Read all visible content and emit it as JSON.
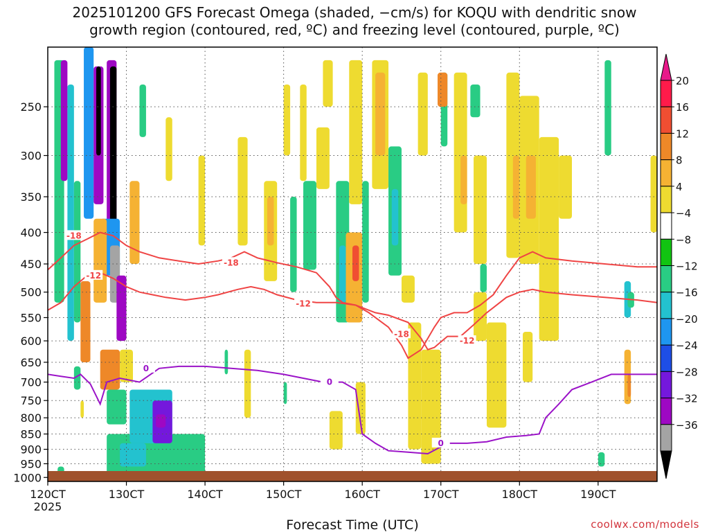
{
  "title_line1": "2025101200 GFS Forecast Omega (shaded, −cm/s) for KOQU with dendritic snow",
  "title_line2": "growth region (contoured, red, ºC) and freezing level (contoured, purple, ºC)",
  "credit": "coolwx.com/models",
  "chart_data": {
    "type": "heatmap",
    "xlabel": "Forecast Time (UTC)",
    "x_ticks": [
      "120CT",
      "130CT",
      "140CT",
      "150CT",
      "160CT",
      "170CT",
      "180CT",
      "190CT"
    ],
    "x_tick_hours": [
      0,
      24,
      48,
      72,
      96,
      120,
      144,
      168
    ],
    "x_sublabel": "2025",
    "xlim": [
      0,
      186
    ],
    "y_ticks": [
      250,
      300,
      350,
      400,
      450,
      500,
      550,
      600,
      650,
      700,
      750,
      800,
      850,
      900,
      950,
      1000
    ],
    "ylim": [
      200,
      1015
    ],
    "y_scale": "log",
    "grid": "dotted",
    "colorbar": {
      "labels": [
        "20",
        "16",
        "12",
        "8",
        "4",
        "−4",
        "−8",
        "−12",
        "−16",
        "−20",
        "−24",
        "−28",
        "−32",
        "−36"
      ],
      "colors": [
        "#ff1b4a",
        "#f04e32",
        "#ee8828",
        "#f5b233",
        "#eedb30",
        "#ffffff",
        "#11c411",
        "#29cc84",
        "#23c2cf",
        "#1e96f0",
        "#1e4ee6",
        "#7418dc",
        "#9e08c3",
        "#a4a4a4",
        "#000000"
      ],
      "top_arrow_color": "#e8198a",
      "bottom_arrow_color": "#000000"
    },
    "omega_cells": [
      {
        "t0": 2,
        "t1": 5,
        "p0": 210,
        "p1": 520,
        "v": -8
      },
      {
        "t0": 4,
        "t1": 6,
        "p0": 210,
        "p1": 330,
        "v": -28
      },
      {
        "t0": 6,
        "t1": 8,
        "p0": 230,
        "p1": 600,
        "v": -12
      },
      {
        "t0": 8,
        "t1": 10,
        "p0": 330,
        "p1": 560,
        "v": -8
      },
      {
        "t0": 11,
        "t1": 14,
        "p0": 200,
        "p1": 380,
        "v": -16
      },
      {
        "t0": 14,
        "t1": 17,
        "p0": 215,
        "p1": 360,
        "v": -30
      },
      {
        "t0": 14.8,
        "t1": 16.2,
        "p0": 215,
        "p1": 300,
        "v": -36
      },
      {
        "t0": 18,
        "t1": 21,
        "p0": 210,
        "p1": 470,
        "v": -28
      },
      {
        "t0": 19,
        "t1": 21,
        "p0": 215,
        "p1": 430,
        "v": -36
      },
      {
        "t0": 16,
        "t1": 22,
        "p0": 380,
        "p1": 470,
        "v": -16
      },
      {
        "t0": 19,
        "t1": 22,
        "p0": 420,
        "p1": 520,
        "v": -32
      },
      {
        "t0": 21,
        "t1": 24,
        "p0": 470,
        "p1": 600,
        "v": -28
      },
      {
        "t0": 10,
        "t1": 13,
        "p0": 480,
        "p1": 650,
        "v": 12
      },
      {
        "t0": 14,
        "t1": 18,
        "p0": 380,
        "p1": 520,
        "v": 8
      },
      {
        "t0": 25,
        "t1": 28,
        "p0": 330,
        "p1": 450,
        "v": 8
      },
      {
        "t0": 16,
        "t1": 22,
        "p0": 620,
        "p1": 720,
        "v": 12
      },
      {
        "t0": 22,
        "t1": 26,
        "p0": 620,
        "p1": 700,
        "v": 6
      },
      {
        "t0": 18,
        "t1": 24,
        "p0": 720,
        "p1": 820,
        "v": -8
      },
      {
        "t0": 18,
        "t1": 48,
        "p0": 850,
        "p1": 1000,
        "v": -8
      },
      {
        "t0": 25,
        "t1": 38,
        "p0": 720,
        "p1": 880,
        "v": -12
      },
      {
        "t0": 32,
        "t1": 38,
        "p0": 750,
        "p1": 880,
        "v": -24
      },
      {
        "t0": 33,
        "t1": 36,
        "p0": 790,
        "p1": 830,
        "v": -28
      },
      {
        "t0": 22,
        "t1": 30,
        "p0": 880,
        "p1": 960,
        "v": -12
      },
      {
        "t0": 3,
        "t1": 5,
        "p0": 960,
        "p1": 1000,
        "v": -8
      },
      {
        "t0": 8,
        "t1": 10,
        "p0": 660,
        "p1": 720,
        "v": -8
      },
      {
        "t0": 10,
        "t1": 11,
        "p0": 750,
        "p1": 800,
        "v": 6
      },
      {
        "t0": 28,
        "t1": 30,
        "p0": 230,
        "p1": 280,
        "v": -8
      },
      {
        "t0": 36,
        "t1": 38,
        "p0": 260,
        "p1": 330,
        "v": 6
      },
      {
        "t0": 46,
        "t1": 48,
        "p0": 300,
        "p1": 420,
        "v": 6
      },
      {
        "t0": 58,
        "t1": 61,
        "p0": 280,
        "p1": 420,
        "v": 6
      },
      {
        "t0": 66,
        "t1": 70,
        "p0": 330,
        "p1": 480,
        "v": 6
      },
      {
        "t0": 67,
        "t1": 69,
        "p0": 350,
        "p1": 420,
        "v": 10
      },
      {
        "t0": 72,
        "t1": 74,
        "p0": 230,
        "p1": 300,
        "v": 6
      },
      {
        "t0": 74,
        "t1": 76,
        "p0": 350,
        "p1": 500,
        "v": -8
      },
      {
        "t0": 77,
        "t1": 79,
        "p0": 230,
        "p1": 330,
        "v": 6
      },
      {
        "t0": 78,
        "t1": 82,
        "p0": 330,
        "p1": 460,
        "v": -8
      },
      {
        "t0": 82,
        "t1": 86,
        "p0": 270,
        "p1": 340,
        "v": 6
      },
      {
        "t0": 84,
        "t1": 87,
        "p0": 210,
        "p1": 250,
        "v": 6
      },
      {
        "t0": 88,
        "t1": 92,
        "p0": 330,
        "p1": 560,
        "v": -8
      },
      {
        "t0": 89,
        "t1": 91,
        "p0": 420,
        "p1": 520,
        "v": -12
      },
      {
        "t0": 92,
        "t1": 96,
        "p0": 210,
        "p1": 360,
        "v": 6
      },
      {
        "t0": 91,
        "t1": 96,
        "p0": 400,
        "p1": 560,
        "v": 8
      },
      {
        "t0": 93,
        "t1": 95,
        "p0": 420,
        "p1": 480,
        "v": 16
      },
      {
        "t0": 96,
        "t1": 98,
        "p0": 330,
        "p1": 520,
        "v": -8
      },
      {
        "t0": 99,
        "t1": 104,
        "p0": 210,
        "p1": 340,
        "v": 6
      },
      {
        "t0": 100,
        "t1": 103,
        "p0": 220,
        "p1": 300,
        "v": 10
      },
      {
        "t0": 104,
        "t1": 108,
        "p0": 290,
        "p1": 470,
        "v": -8
      },
      {
        "t0": 105,
        "t1": 107,
        "p0": 340,
        "p1": 420,
        "v": -12
      },
      {
        "t0": 108,
        "t1": 112,
        "p0": 470,
        "p1": 520,
        "v": 6
      },
      {
        "t0": 113,
        "t1": 116,
        "p0": 220,
        "p1": 300,
        "v": 6
      },
      {
        "t0": 110,
        "t1": 114,
        "p0": 560,
        "p1": 900,
        "v": 6
      },
      {
        "t0": 114,
        "t1": 120,
        "p0": 620,
        "p1": 950,
        "v": 6
      },
      {
        "t0": 120,
        "t1": 122,
        "p0": 220,
        "p1": 290,
        "v": -8
      },
      {
        "t0": 124,
        "t1": 128,
        "p0": 220,
        "p1": 400,
        "v": 6
      },
      {
        "t0": 126,
        "t1": 128,
        "p0": 300,
        "p1": 360,
        "v": 10
      },
      {
        "t0": 129,
        "t1": 132,
        "p0": 230,
        "p1": 260,
        "v": -8
      },
      {
        "t0": 130,
        "t1": 134,
        "p0": 300,
        "p1": 450,
        "v": 6
      },
      {
        "t0": 130,
        "t1": 134,
        "p0": 500,
        "p1": 600,
        "v": 6
      },
      {
        "t0": 132,
        "t1": 134,
        "p0": 450,
        "p1": 500,
        "v": -8
      },
      {
        "t0": 134,
        "t1": 140,
        "p0": 560,
        "p1": 830,
        "v": 6
      },
      {
        "t0": 140,
        "t1": 144,
        "p0": 220,
        "p1": 440,
        "v": 6
      },
      {
        "t0": 142,
        "t1": 144,
        "p0": 300,
        "p1": 380,
        "v": 10
      },
      {
        "t0": 144,
        "t1": 150,
        "p0": 240,
        "p1": 450,
        "v": 6
      },
      {
        "t0": 146,
        "t1": 149,
        "p0": 300,
        "p1": 380,
        "v": 10
      },
      {
        "t0": 145,
        "t1": 148,
        "p0": 580,
        "p1": 700,
        "v": 6
      },
      {
        "t0": 150,
        "t1": 156,
        "p0": 280,
        "p1": 600,
        "v": 6
      },
      {
        "t0": 156,
        "t1": 160,
        "p0": 300,
        "p1": 380,
        "v": 6
      },
      {
        "t0": 170,
        "t1": 172,
        "p0": 210,
        "p1": 300,
        "v": -8
      },
      {
        "t0": 176,
        "t1": 178,
        "p0": 480,
        "p1": 550,
        "v": -12
      },
      {
        "t0": 177,
        "t1": 179,
        "p0": 500,
        "p1": 530,
        "v": -8
      },
      {
        "t0": 176,
        "t1": 178,
        "p0": 620,
        "p1": 760,
        "v": 8
      },
      {
        "t0": 177,
        "t1": 178,
        "p0": 680,
        "p1": 740,
        "v": 12
      },
      {
        "t0": 184,
        "t1": 186,
        "p0": 300,
        "p1": 400,
        "v": 6
      },
      {
        "t0": 168,
        "t1": 170,
        "p0": 910,
        "p1": 960,
        "v": -8
      },
      {
        "t0": 54,
        "t1": 55,
        "p0": 620,
        "p1": 680,
        "v": -8
      },
      {
        "t0": 60,
        "t1": 62,
        "p0": 620,
        "p1": 800,
        "v": 6
      },
      {
        "t0": 72,
        "t1": 73,
        "p0": 700,
        "p1": 760,
        "v": -8
      },
      {
        "t0": 86,
        "t1": 90,
        "p0": 780,
        "p1": 900,
        "v": 6
      },
      {
        "t0": 94,
        "t1": 97,
        "p0": 700,
        "p1": 850,
        "v": 6
      },
      {
        "t0": 119,
        "t1": 122,
        "p0": 220,
        "p1": 250,
        "v": 14
      }
    ],
    "contours": [
      {
        "label": "-18",
        "color": "#ef4444",
        "points": [
          [
            0,
            460
          ],
          [
            4,
            440
          ],
          [
            8,
            420
          ],
          [
            12,
            410
          ],
          [
            16,
            400
          ],
          [
            20,
            405
          ],
          [
            24,
            420
          ],
          [
            28,
            430
          ],
          [
            34,
            440
          ],
          [
            40,
            445
          ],
          [
            46,
            450
          ],
          [
            52,
            445
          ],
          [
            56,
            440
          ],
          [
            60,
            430
          ],
          [
            64,
            440
          ],
          [
            70,
            448
          ],
          [
            76,
            455
          ],
          [
            82,
            465
          ],
          [
            86,
            490
          ],
          [
            88,
            510
          ],
          [
            90,
            520
          ],
          [
            94,
            525
          ],
          [
            98,
            540
          ],
          [
            104,
            570
          ],
          [
            108,
            610
          ],
          [
            110,
            640
          ],
          [
            114,
            620
          ],
          [
            118,
            570
          ],
          [
            120,
            550
          ],
          [
            124,
            540
          ],
          [
            128,
            540
          ],
          [
            132,
            525
          ],
          [
            136,
            505
          ],
          [
            140,
            470
          ],
          [
            144,
            440
          ],
          [
            148,
            430
          ],
          [
            152,
            440
          ],
          [
            160,
            445
          ],
          [
            170,
            450
          ],
          [
            180,
            455
          ],
          [
            186,
            455
          ]
        ],
        "labels": [
          [
            8,
            405
          ],
          [
            56,
            448
          ],
          [
            108,
            585
          ]
        ]
      },
      {
        "label": "-12",
        "color": "#ef4444",
        "points": [
          [
            0,
            535
          ],
          [
            4,
            520
          ],
          [
            8,
            490
          ],
          [
            12,
            470
          ],
          [
            16,
            465
          ],
          [
            20,
            475
          ],
          [
            24,
            490
          ],
          [
            28,
            500
          ],
          [
            32,
            505
          ],
          [
            36,
            510
          ],
          [
            42,
            515
          ],
          [
            48,
            510
          ],
          [
            52,
            505
          ],
          [
            58,
            495
          ],
          [
            62,
            490
          ],
          [
            66,
            495
          ],
          [
            70,
            505
          ],
          [
            76,
            515
          ],
          [
            82,
            520
          ],
          [
            88,
            520
          ],
          [
            94,
            525
          ],
          [
            100,
            540
          ],
          [
            104,
            545
          ],
          [
            110,
            560
          ],
          [
            114,
            595
          ],
          [
            116,
            620
          ],
          [
            118,
            615
          ],
          [
            122,
            590
          ],
          [
            126,
            590
          ],
          [
            130,
            565
          ],
          [
            134,
            540
          ],
          [
            136,
            530
          ],
          [
            140,
            510
          ],
          [
            144,
            500
          ],
          [
            148,
            495
          ],
          [
            152,
            500
          ],
          [
            160,
            505
          ],
          [
            170,
            510
          ],
          [
            180,
            515
          ],
          [
            186,
            520
          ]
        ],
        "labels": [
          [
            14,
            470
          ],
          [
            78,
            522
          ],
          [
            128,
            600
          ]
        ]
      },
      {
        "label": "0",
        "color": "#9b13c8",
        "points": [
          [
            0,
            680
          ],
          [
            4,
            685
          ],
          [
            8,
            690
          ],
          [
            10,
            680
          ],
          [
            13,
            705
          ],
          [
            16,
            760
          ],
          [
            18,
            700
          ],
          [
            22,
            690
          ],
          [
            28,
            700
          ],
          [
            34,
            665
          ],
          [
            40,
            660
          ],
          [
            48,
            660
          ],
          [
            56,
            665
          ],
          [
            64,
            670
          ],
          [
            72,
            680
          ],
          [
            78,
            690
          ],
          [
            84,
            700
          ],
          [
            90,
            700
          ],
          [
            94,
            720
          ],
          [
            96,
            850
          ],
          [
            100,
            880
          ],
          [
            104,
            905
          ],
          [
            110,
            910
          ],
          [
            116,
            915
          ],
          [
            122,
            880
          ],
          [
            128,
            880
          ],
          [
            134,
            875
          ],
          [
            140,
            860
          ],
          [
            146,
            855
          ],
          [
            150,
            850
          ],
          [
            152,
            800
          ],
          [
            156,
            760
          ],
          [
            160,
            720
          ],
          [
            166,
            700
          ],
          [
            172,
            680
          ],
          [
            180,
            680
          ],
          [
            186,
            680
          ]
        ],
        "labels": [
          [
            30,
            665
          ],
          [
            86,
            700
          ],
          [
            120,
            880
          ]
        ]
      }
    ]
  }
}
